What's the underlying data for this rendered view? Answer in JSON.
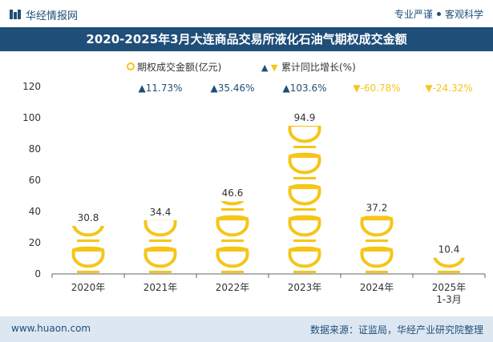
{
  "header": {
    "brand": "华经情报网",
    "tagline_left": "专业严谨",
    "tagline_right": "客观科学"
  },
  "footer": {
    "site": "www.huaon.com",
    "source": "数据来源：证监局，华经产业研究院整理"
  },
  "chart_data": {
    "type": "bar",
    "title": "2020-2025年3月大连商品交易所液化石油气期权成交金额",
    "categories": [
      "2020年",
      "2021年",
      "2022年",
      "2023年",
      "2024年",
      "2025年\n1-3月"
    ],
    "series": [
      {
        "name": "期权成交金额(亿元)",
        "values": [
          30.8,
          34.4,
          46.6,
          94.9,
          37.2,
          10.4
        ]
      }
    ],
    "growth": {
      "name": "累计同比增长(%)",
      "labels": [
        "",
        "▲11.73%",
        "▲35.46%",
        "▲103.6%",
        "▼-60.78%",
        "▼-24.32%"
      ],
      "directions": [
        "",
        "up",
        "up",
        "up",
        "down",
        "down"
      ]
    },
    "ylim": [
      0,
      120
    ],
    "yticks": [
      0,
      20,
      40,
      60,
      80,
      100,
      120
    ],
    "legend": "top-center",
    "colors": {
      "bar": "#f5c518",
      "bar_dark": "#d9a300",
      "up": "#1f4e79",
      "down": "#f5c518"
    }
  }
}
